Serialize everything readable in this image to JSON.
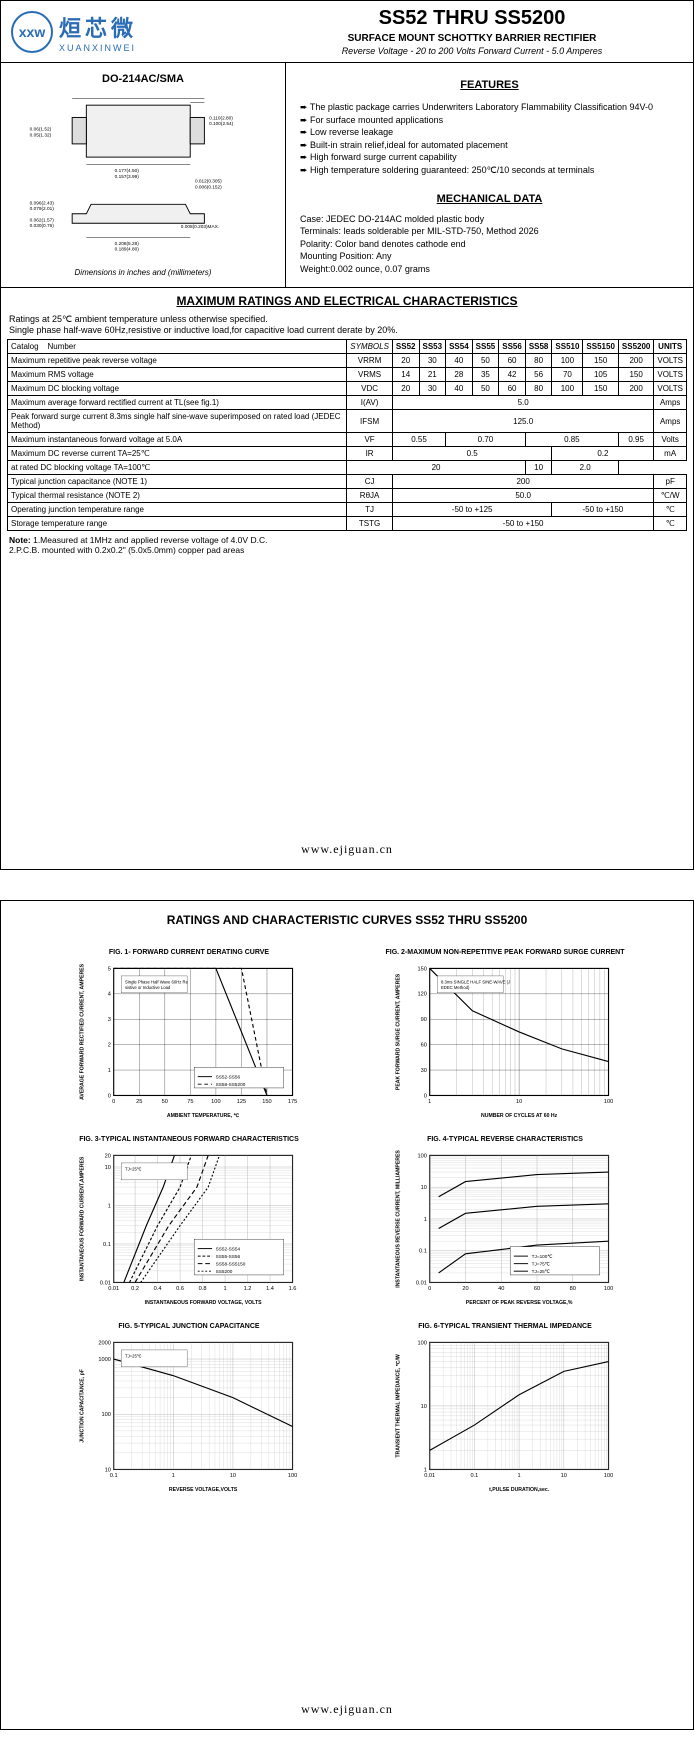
{
  "logo": {
    "abbrev": "xxw",
    "company_cn": "烜芯微",
    "company_en": "XUANXINWEI"
  },
  "header": {
    "title": "SS52 THRU SS5200",
    "subtitle": "SURFACE MOUNT SCHOTTKY BARRIER RECTIFIER",
    "spec": "Reverse Voltage - 20 to 200 Volts   Forward Current - 5.0 Amperes"
  },
  "package": {
    "title": "DO-214AC/SMA",
    "dims_note": "Dimensions in inches and (millimeters)"
  },
  "features": {
    "title": "FEATURES",
    "items": [
      "The plastic package carries Underwriters Laboratory Flammability Classification 94V-0",
      "For surface mounted applications",
      "Low reverse leakage",
      "Built-in strain relief,ideal for automated placement",
      "High forward surge current capability",
      "High temperature soldering guaranteed: 250℃/10 seconds at terminals"
    ]
  },
  "mechanical": {
    "title": "MECHANICAL DATA",
    "case": "Case: JEDEC DO-214AC molded plastic body",
    "terminals": "Terminals: leads solderable per MIL-STD-750, Method 2026",
    "polarity": "Polarity: Color band denotes cathode end",
    "mounting": "Mounting Position: Any",
    "weight": "Weight:0.002 ounce, 0.07 grams"
  },
  "ratings": {
    "title": "MAXIMUM RATINGS AND ELECTRICAL CHARACTERISTICS",
    "note": "Ratings at 25℃ ambient temperature unless otherwise specified.\nSingle phase half-wave 60Hz,resistive or inductive load,for capacitive load current derate by 20%.",
    "columns": [
      "SS52",
      "SS53",
      "SS54",
      "SS55",
      "SS56",
      "SS58",
      "SS510",
      "SS5150",
      "SS5200"
    ],
    "rows": [
      {
        "label": "Maximum repetitive peak reverse voltage",
        "symbol": "VRRM",
        "vals": [
          "20",
          "30",
          "40",
          "50",
          "60",
          "80",
          "100",
          "150",
          "200"
        ],
        "units": "VOLTS"
      },
      {
        "label": "Maximum RMS voltage",
        "symbol": "VRMS",
        "vals": [
          "14",
          "21",
          "28",
          "35",
          "42",
          "56",
          "70",
          "105",
          "150"
        ],
        "units": "VOLTS"
      },
      {
        "label": "Maximum DC blocking voltage",
        "symbol": "VDC",
        "vals": [
          "20",
          "30",
          "40",
          "50",
          "60",
          "80",
          "100",
          "150",
          "200"
        ],
        "units": "VOLTS"
      },
      {
        "label": "Maximum average forward rectified current at TL(see fig.1)",
        "symbol": "I(AV)",
        "span": "5.0",
        "units": "Amps"
      },
      {
        "label": "Peak forward surge current 8.3ms single half sine-wave superimposed on rated load (JEDEC Method)",
        "symbol": "IFSM",
        "span": "125.0",
        "units": "Amps"
      },
      {
        "label": "Maximum instantaneous forward voltage at 5.0A",
        "symbol": "VF",
        "groups": [
          [
            "0.55",
            2
          ],
          [
            "0.70",
            3
          ],
          [
            "0.85",
            3
          ],
          [
            "0.95",
            1
          ]
        ],
        "units": "Volts"
      },
      {
        "label": "Maximum DC reverse current   TA=25℃",
        "symbol": "IR",
        "rowspan": 2,
        "groups": [
          [
            "0.5",
            6
          ],
          [
            "0.2",
            3
          ]
        ],
        "units": "mA"
      },
      {
        "label": "at rated DC blocking voltage   TA=100℃",
        "groups": [
          [
            "20",
            6
          ],
          [
            "10",
            1
          ],
          [
            "2.0",
            2
          ]
        ]
      },
      {
        "label": "Typical junction capacitance (NOTE 1)",
        "symbol": "CJ",
        "span": "200",
        "units": "pF"
      },
      {
        "label": "Typical thermal resistance (NOTE 2)",
        "symbol": "RθJA",
        "span": "50.0",
        "units": "℃/W"
      },
      {
        "label": "Operating junction temperature range",
        "symbol": "TJ",
        "groups": [
          [
            "-50 to +125",
            6
          ],
          [
            "-50 to +150",
            3
          ]
        ],
        "units": "℃"
      },
      {
        "label": "Storage temperature range",
        "symbol": "TSTG",
        "span": "-50 to +150",
        "units": "℃"
      }
    ],
    "footnotes": "Note: 1.Measured at 1MHz and applied reverse voltage of 4.0V D.C.\n          2.P.C.B. mounted with 0.2x0.2\" (5.0x5.0mm) copper pad areas"
  },
  "footer_url": "www.ejiguan.cn",
  "page2": {
    "title": "RATINGS AND CHARACTERISTIC CURVES SS52 THRU SS5200",
    "charts": [
      {
        "id": 1,
        "title": "FIG. 1- FORWARD CURRENT DERATING CURVE",
        "xlabel": "AMBIENT TEMPERATURE, ℃",
        "ylabel": "AVERAGE FORWARD RECTIFIED CURRENT, AMPERES",
        "xlim": [
          0,
          175
        ],
        "xticks": [
          0,
          25,
          50,
          75,
          100,
          125,
          150,
          175
        ],
        "ylim": [
          0,
          5
        ],
        "yticks": [
          0,
          1,
          2,
          3,
          4,
          5
        ],
        "bg": "#ffffff",
        "grid": "#000000",
        "lines": [
          {
            "name": "SS52-SS56",
            "color": "#000000",
            "dash": "none",
            "pts": [
              [
                0,
                5
              ],
              [
                100,
                5
              ],
              [
                150,
                0
              ]
            ]
          },
          {
            "name": "SS58-SS5200",
            "color": "#000000",
            "dash": "4,3",
            "pts": [
              [
                0,
                5
              ],
              [
                125,
                5
              ],
              [
                150,
                0
              ]
            ]
          }
        ],
        "annot": "Single Phase Half Wave 60Hz Resistive or Inductive Load"
      },
      {
        "id": 2,
        "title": "FIG. 2-MAXIMUM NON-REPETITIVE PEAK FORWARD SURGE CURRENT",
        "xlabel": "NUMBER OF CYCLES AT 60 Hz",
        "ylabel": "PEAK FORWARD SURGE CURRENT, AMPERES",
        "xlim": [
          1,
          100
        ],
        "xticks": [
          1,
          10,
          100
        ],
        "ylim": [
          0,
          150
        ],
        "yticks": [
          0,
          30,
          60,
          90,
          120,
          150
        ],
        "bg": "#ffffff",
        "grid": "#000000",
        "xscale": "log",
        "lines": [
          {
            "color": "#000000",
            "dash": "none",
            "pts": [
              [
                1,
                150
              ],
              [
                3,
                100
              ],
              [
                10,
                75
              ],
              [
                30,
                55
              ],
              [
                100,
                40
              ]
            ]
          }
        ],
        "annot": "8.3ms SINGLE HALF SINE-WAVE (JEDEC Method)"
      },
      {
        "id": 3,
        "title": "FIG. 3-TYPICAL INSTANTANEOUS FORWARD CHARACTERISTICS",
        "xlabel": "INSTANTANEOUS FORWARD VOLTAGE, VOLTS",
        "ylabel": "INSTANTANEOUS FORWARD CURRENT,AMPERES",
        "xlim": [
          0.01,
          1.6
        ],
        "xticks": [
          0.01,
          0.2,
          0.4,
          0.6,
          0.8,
          1.0,
          1.2,
          1.4,
          1.6
        ],
        "ylim": [
          0.01,
          20
        ],
        "yticks": [
          0.01,
          0.1,
          1,
          10,
          20
        ],
        "bg": "#ffffff",
        "grid": "#888888",
        "xscale": "linear",
        "yscale": "log",
        "lines": [
          {
            "name": "SS52-SS54",
            "color": "#000",
            "pts": [
              [
                0.1,
                0.01
              ],
              [
                0.3,
                0.3
              ],
              [
                0.45,
                3
              ],
              [
                0.55,
                20
              ]
            ]
          },
          {
            "name": "SS55-SS56",
            "color": "#000",
            "dash": "3,2",
            "pts": [
              [
                0.15,
                0.01
              ],
              [
                0.4,
                0.3
              ],
              [
                0.6,
                3
              ],
              [
                0.7,
                20
              ]
            ]
          },
          {
            "name": "SS58-SS5150",
            "color": "#000",
            "dash": "5,3",
            "pts": [
              [
                0.2,
                0.01
              ],
              [
                0.5,
                0.3
              ],
              [
                0.75,
                3
              ],
              [
                0.85,
                20
              ]
            ]
          },
          {
            "name": "SS5200",
            "color": "#000",
            "dash": "2,2",
            "pts": [
              [
                0.25,
                0.01
              ],
              [
                0.6,
                0.3
              ],
              [
                0.85,
                3
              ],
              [
                0.95,
                20
              ]
            ]
          }
        ],
        "annot": "TJ=25℃"
      },
      {
        "id": 4,
        "title": "FIG. 4-TYPICAL REVERSE CHARACTERISTICS",
        "xlabel": "PERCENT OF PEAK REVERSE VOLTAGE,%",
        "ylabel": "INSTANTANEOUS REVERSE CURRENT, MILLIAMPERES",
        "xlim": [
          0,
          100
        ],
        "xticks": [
          0,
          20,
          40,
          60,
          80,
          100
        ],
        "ylim": [
          0.01,
          100
        ],
        "yticks": [
          0.01,
          0.1,
          1,
          10,
          100
        ],
        "bg": "#ffffff",
        "grid": "#888888",
        "yscale": "log",
        "lines": [
          {
            "name": "TJ=100℃",
            "color": "#000",
            "pts": [
              [
                5,
                5
              ],
              [
                20,
                15
              ],
              [
                60,
                25
              ],
              [
                100,
                30
              ]
            ]
          },
          {
            "name": "TJ=75℃",
            "color": "#000",
            "pts": [
              [
                5,
                0.5
              ],
              [
                20,
                1.5
              ],
              [
                60,
                2.5
              ],
              [
                100,
                3
              ]
            ]
          },
          {
            "name": "TJ=25℃",
            "color": "#000",
            "pts": [
              [
                5,
                0.02
              ],
              [
                20,
                0.08
              ],
              [
                60,
                0.15
              ],
              [
                100,
                0.2
              ]
            ]
          }
        ]
      },
      {
        "id": 5,
        "title": "FIG. 5-TYPICAL JUNCTION CAPACITANCE",
        "xlabel": "REVERSE VOLTAGE,VOLTS",
        "ylabel": "JUNCTION CAPACITANCE, pF",
        "xlim": [
          0.1,
          100
        ],
        "xticks": [
          0.1,
          1,
          10,
          100
        ],
        "ylim": [
          10,
          2000
        ],
        "yticks": [
          10,
          100,
          1000,
          2000
        ],
        "bg": "#ffffff",
        "grid": "#888888",
        "xscale": "log",
        "yscale": "log",
        "lines": [
          {
            "color": "#000",
            "pts": [
              [
                0.1,
                1000
              ],
              [
                1,
                500
              ],
              [
                10,
                200
              ],
              [
                100,
                60
              ]
            ]
          }
        ],
        "annot": "TJ=25℃"
      },
      {
        "id": 6,
        "title": "FIG. 6-TYPICAL TRANSIENT THERMAL IMPEDANCE",
        "xlabel": "t,PULSE DURATION,sec.",
        "ylabel": "TRANSIENT THERMAL IMPEDANCE, ℃/W",
        "xlim": [
          0.01,
          100
        ],
        "xticks": [
          0.01,
          0.1,
          1,
          10,
          100
        ],
        "ylim": [
          1,
          100
        ],
        "yticks": [
          1,
          10,
          100
        ],
        "bg": "#ffffff",
        "grid": "#888888",
        "xscale": "log",
        "yscale": "log",
        "lines": [
          {
            "color": "#000",
            "pts": [
              [
                0.01,
                2
              ],
              [
                0.1,
                5
              ],
              [
                1,
                15
              ],
              [
                10,
                35
              ],
              [
                100,
                50
              ]
            ]
          }
        ]
      }
    ]
  },
  "colors": {
    "border": "#000000",
    "logo_blue": "#2a6db5",
    "text": "#000000",
    "grid_light": "#cccccc"
  }
}
